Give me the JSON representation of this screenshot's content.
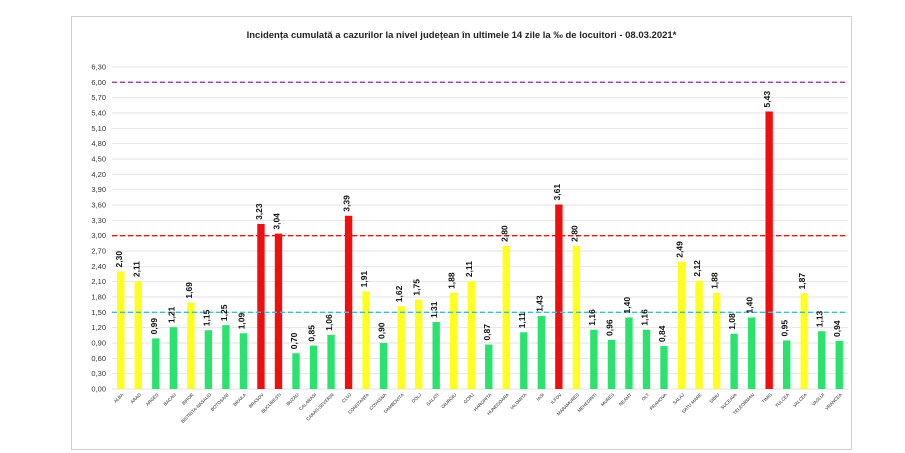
{
  "chart_data": {
    "type": "bar",
    "title": "Incidența cumulată a cazurilor la nivel județean în ultimele 14 zile la ‰ de locuitori - 08.03.2021*",
    "xlabel": "",
    "ylabel": "",
    "ylim": [
      0,
      6.3
    ],
    "yticks": [
      "0,00",
      "0,30",
      "0,60",
      "0,90",
      "1,20",
      "1,50",
      "1,80",
      "2,10",
      "2,40",
      "2,70",
      "3,00",
      "3,30",
      "3,60",
      "3,90",
      "4,20",
      "4,50",
      "4,80",
      "5,10",
      "5,40",
      "5,70",
      "6,00",
      "6,30"
    ],
    "categories": [
      "ALBA",
      "ARAD",
      "ARGES",
      "BACAU",
      "BIHOR",
      "BISTRITA-NASAUD",
      "BOTOSANI",
      "BRAILA",
      "BRASOV",
      "BUCURESTI",
      "BUZAU",
      "CALARASI",
      "CARAS-SEVERIN",
      "CLUJ",
      "CONSTANTA",
      "COVASNA",
      "DAMBOVITA",
      "DOLJ",
      "GALATI",
      "GIURGIU",
      "GORJ",
      "HARGHITA",
      "HUNEDOARA",
      "IALOMITA",
      "IASI",
      "ILFOV",
      "MARAMURES",
      "MEHEDINTI",
      "MURES",
      "NEAMT",
      "OLT",
      "PRAHOVA",
      "SALAJ",
      "SATU MARE",
      "SIBIU",
      "SUCEAVA",
      "TELEORMAN",
      "TIMIS",
      "TULCEA",
      "VALCEA",
      "VASLUI",
      "VRANCEA"
    ],
    "values": [
      2.3,
      2.11,
      0.99,
      1.21,
      1.69,
      1.15,
      1.25,
      1.09,
      3.23,
      3.04,
      0.7,
      0.85,
      1.06,
      3.39,
      1.91,
      0.9,
      1.62,
      1.75,
      1.31,
      1.88,
      2.11,
      0.87,
      2.8,
      1.11,
      1.43,
      3.61,
      2.8,
      1.16,
      0.96,
      1.4,
      1.16,
      0.84,
      2.49,
      2.12,
      1.88,
      1.08,
      1.4,
      5.43,
      0.95,
      1.87,
      1.13,
      0.94
    ],
    "value_labels": [
      "2,30",
      "2,11",
      "0,99",
      "1,21",
      "1,69",
      "1,15",
      "1,25",
      "1,09",
      "3,23",
      "3,04",
      "0,70",
      "0,85",
      "1,06",
      "3,39",
      "1,91",
      "0,90",
      "1,62",
      "1,75",
      "1,31",
      "1,88",
      "2,11",
      "0,87",
      "2,80",
      "1,11",
      "1,43",
      "3,61",
      "2,80",
      "1,16",
      "0,96",
      "1,40",
      "1,16",
      "0,84",
      "2,49",
      "2,12",
      "1,88",
      "1,08",
      "1,40",
      "5,43",
      "0,95",
      "1,87",
      "1,13",
      "0,94"
    ],
    "bar_colors": [
      "yellow",
      "yellow",
      "green",
      "green",
      "yellow",
      "green",
      "green",
      "green",
      "red",
      "red",
      "green",
      "green",
      "green",
      "red",
      "yellow",
      "green",
      "yellow",
      "yellow",
      "green",
      "yellow",
      "yellow",
      "green",
      "yellow",
      "green",
      "green",
      "red",
      "yellow",
      "green",
      "green",
      "green",
      "green",
      "green",
      "yellow",
      "yellow",
      "yellow",
      "green",
      "green",
      "red",
      "green",
      "yellow",
      "green",
      "green"
    ],
    "palette": {
      "green": "#2BE26F",
      "yellow": "#FFFF1F",
      "red": "#F00F0F",
      "grid": "#d9d9d9"
    },
    "reference_lines": [
      {
        "value": 1.5,
        "color": "#3FBCD4"
      },
      {
        "value": 3.0,
        "color": "#F01414"
      },
      {
        "value": 6.0,
        "color": "#8A3FB0"
      }
    ],
    "grid": true,
    "legend": "none"
  }
}
